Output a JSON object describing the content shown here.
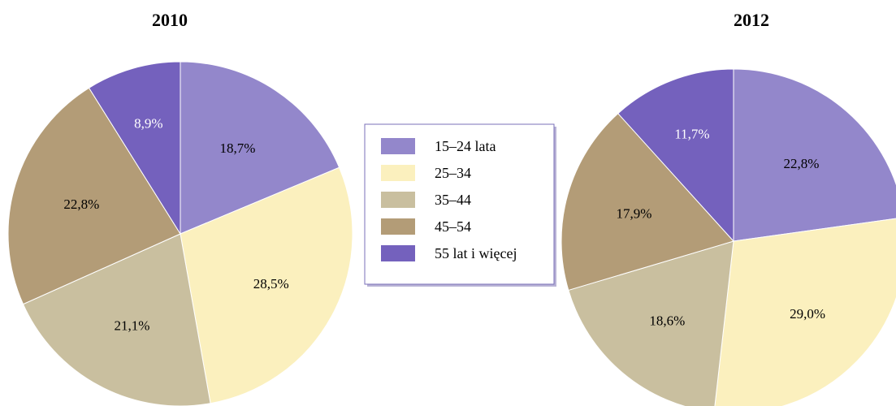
{
  "chart_data": [
    {
      "type": "pie",
      "title": "2010",
      "categories": [
        "15–24 lata",
        "25–34",
        "35–44",
        "45–54",
        "55 lat i więcej"
      ],
      "values": [
        18.7,
        28.5,
        21.1,
        22.8,
        8.9
      ],
      "labels": [
        "18,7%",
        "28,5%",
        "21,1%",
        "22,8%",
        "8,9%"
      ]
    },
    {
      "type": "pie",
      "title": "2012",
      "categories": [
        "15–24 lata",
        "25–34",
        "35–44",
        "45–54",
        "55 lat i więcej"
      ],
      "values": [
        22.8,
        29.0,
        18.6,
        17.9,
        11.7
      ],
      "labels": [
        "22,8%",
        "29,0%",
        "18,6%",
        "17,9%",
        "11,7%"
      ]
    }
  ],
  "legend": {
    "placement": "center",
    "items": [
      {
        "label": "15–24 lata",
        "color": "#9387cb"
      },
      {
        "label": "25–34",
        "color": "#fbf0be"
      },
      {
        "label": "35–44",
        "color": "#c9bf9f"
      },
      {
        "label": "45–54",
        "color": "#b39c77"
      },
      {
        "label": "55 lat i więcej",
        "color": "#7461bd"
      }
    ]
  },
  "colors": {
    "slice_label_on_dark": "#ffffff",
    "slice_label_on_light": "#000000",
    "slice_stroke": "#ffffff",
    "legend_border": "#7a6fb8"
  }
}
